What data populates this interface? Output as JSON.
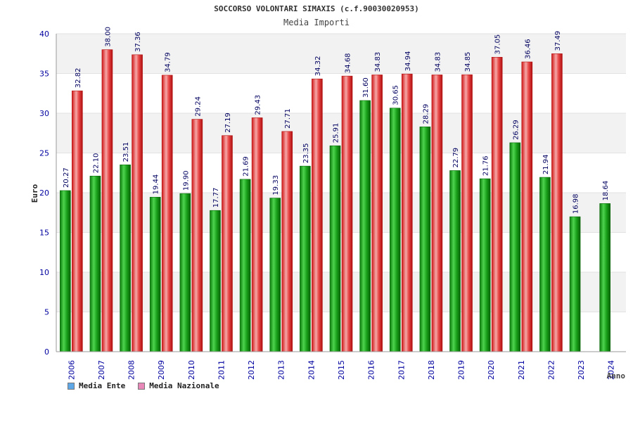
{
  "colors": {
    "ente": "#1aa01a",
    "nazionale": "#e53838",
    "band": "#f2f2f2",
    "axis_text": "#0000a0",
    "label_text": "#000060",
    "legend_ente": "#5fa8e8",
    "legend_nazionale": "#e888b8"
  },
  "chart_data": {
    "type": "bar",
    "title": "SOCCORSO VOLONTARI SIMAXIS (c.f.90030020953)",
    "subtitle": "Media Importi",
    "xlabel": "Anno",
    "ylabel": "Euro",
    "ylim": [
      0,
      40
    ],
    "yticks": [
      "0",
      "5",
      "10",
      "15",
      "20",
      "25",
      "30",
      "35",
      "40"
    ],
    "grid": true,
    "legend_position": "bottom-left",
    "categories": [
      "2006",
      "2007",
      "2008",
      "2009",
      "2010",
      "2011",
      "2012",
      "2013",
      "2014",
      "2015",
      "2016",
      "2017",
      "2018",
      "2019",
      "2020",
      "2021",
      "2022",
      "2023",
      "2024"
    ],
    "series": [
      {
        "name": "Media Ente",
        "values": [
          20.27,
          22.1,
          23.51,
          19.44,
          19.9,
          17.77,
          21.69,
          19.33,
          23.35,
          25.91,
          31.6,
          30.65,
          28.29,
          22.79,
          21.76,
          26.29,
          21.94,
          16.98,
          18.64
        ],
        "labels": [
          "20.27",
          "22.10",
          "23.51",
          "19.44",
          "19.90",
          "17.77",
          "21.69",
          "19.33",
          "23.35",
          "25.91",
          "31.60",
          "30.65",
          "28.29",
          "22.79",
          "21.76",
          "26.29",
          "21.94",
          "16.98",
          "18.64"
        ]
      },
      {
        "name": "Media Nazionale",
        "values": [
          32.82,
          38.0,
          37.36,
          34.79,
          29.24,
          27.19,
          29.43,
          27.71,
          34.32,
          34.68,
          34.83,
          34.94,
          34.83,
          34.85,
          37.05,
          36.46,
          37.49,
          null,
          null
        ],
        "labels": [
          "32.82",
          "38.00",
          "37.36",
          "34.79",
          "29.24",
          "27.19",
          "29.43",
          "27.71",
          "34.32",
          "34.68",
          "34.83",
          "34.94",
          "34.83",
          "34.85",
          "37.05",
          "36.46",
          "37.49",
          "",
          ""
        ]
      }
    ]
  }
}
